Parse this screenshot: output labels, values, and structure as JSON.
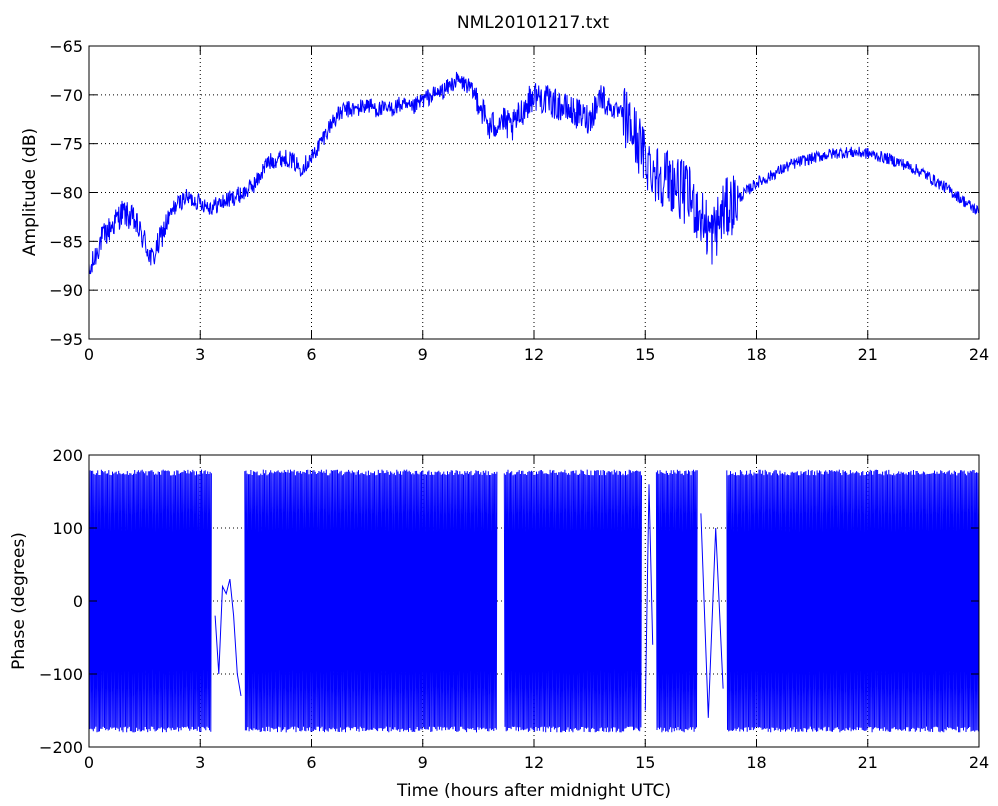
{
  "figure": {
    "title": "NML20101217.txt",
    "xlabel": "Time (hours after midnight UTC)"
  },
  "chart_data": [
    {
      "type": "line",
      "title": "NML20101217.txt",
      "xlabel": "",
      "ylabel": "Amplitude (dB)",
      "xlim": [
        0,
        24
      ],
      "ylim": [
        -95,
        -65
      ],
      "xticks": [
        0,
        3,
        6,
        9,
        12,
        15,
        18,
        21,
        24
      ],
      "yticks": [
        -95,
        -90,
        -85,
        -80,
        -75,
        -70,
        -65
      ],
      "grid": true,
      "color": "#0000ff",
      "series": [
        {
          "x": [
            0.0,
            0.3,
            0.6,
            0.9,
            1.2,
            1.5,
            1.7,
            2.0,
            2.3,
            2.6,
            3.0,
            3.3,
            3.6,
            3.9,
            4.2,
            4.5,
            4.8,
            5.1,
            5.4,
            5.7,
            6.0,
            6.3,
            6.6,
            6.9,
            7.2,
            7.5,
            7.8,
            8.1,
            8.4,
            8.7,
            9.0,
            9.3,
            9.6,
            9.9,
            10.2,
            10.5,
            10.8,
            11.1,
            11.4,
            11.7,
            12.0,
            12.3,
            12.6,
            12.9,
            13.2,
            13.5,
            13.8,
            14.1,
            14.4,
            14.7,
            15.0,
            15.3,
            15.6,
            15.9,
            16.2,
            16.5,
            16.8,
            17.1,
            17.4,
            17.7,
            18.0,
            18.3,
            18.6,
            18.9,
            19.2,
            19.5,
            19.8,
            20.1,
            20.4,
            20.7,
            21.0,
            21.3,
            21.6,
            21.9,
            22.2,
            22.5,
            22.8,
            23.1,
            23.4,
            23.7,
            24.0
          ],
          "values": [
            -88.5,
            -85.0,
            -83.5,
            -82.0,
            -82.8,
            -85.0,
            -87.0,
            -84.0,
            -81.5,
            -80.5,
            -81.0,
            -81.5,
            -81.0,
            -80.5,
            -80.0,
            -79.0,
            -77.0,
            -76.5,
            -76.5,
            -77.5,
            -76.5,
            -74.5,
            -72.5,
            -71.5,
            -71.5,
            -71.0,
            -71.5,
            -71.5,
            -71.0,
            -71.5,
            -70.5,
            -70.0,
            -69.5,
            -68.5,
            -69.0,
            -70.5,
            -73.5,
            -72.5,
            -73.5,
            -71.5,
            -70.0,
            -70.5,
            -71.0,
            -71.5,
            -72.0,
            -72.5,
            -70.0,
            -71.5,
            -72.0,
            -74.0,
            -76.5,
            -78.0,
            -78.5,
            -79.5,
            -80.5,
            -82.5,
            -84.5,
            -82.0,
            -81.0,
            -80.0,
            -79.0,
            -78.5,
            -77.8,
            -77.2,
            -76.8,
            -76.5,
            -76.2,
            -76.0,
            -75.9,
            -75.9,
            -76.0,
            -76.3,
            -76.6,
            -77.0,
            -77.5,
            -78.0,
            -78.8,
            -79.5,
            -80.3,
            -81.2,
            -82.0
          ]
        }
      ]
    },
    {
      "type": "line",
      "title": "",
      "xlabel": "Time (hours after midnight UTC)",
      "ylabel": "Phase (degrees)",
      "xlim": [
        0,
        24
      ],
      "ylim": [
        -200,
        200
      ],
      "xticks": [
        0,
        3,
        6,
        9,
        12,
        15,
        18,
        21,
        24
      ],
      "yticks": [
        -200,
        -100,
        0,
        100,
        200
      ],
      "grid": true,
      "color": "#0000ff",
      "series": [
        {
          "wrapped_range": [
            -180,
            180
          ],
          "dense_segments": [
            [
              0.0,
              3.3
            ],
            [
              4.2,
              11.0
            ],
            [
              11.2,
              14.9
            ],
            [
              15.3,
              16.4
            ],
            [
              17.2,
              24.0
            ]
          ],
          "sparse_segments": [
            [
              3.3,
              4.2
            ],
            [
              14.9,
              15.3
            ],
            [
              16.4,
              17.2
            ]
          ],
          "x": [
            3.4,
            3.5,
            3.6,
            3.7,
            3.8,
            3.9,
            4.0,
            4.1,
            15.0,
            15.1,
            15.2,
            16.5,
            16.7,
            16.9,
            17.1
          ],
          "values": [
            -20,
            -100,
            20,
            10,
            30,
            -20,
            -100,
            -130,
            -150,
            160,
            -60,
            120,
            -160,
            100,
            -120
          ]
        }
      ]
    }
  ]
}
